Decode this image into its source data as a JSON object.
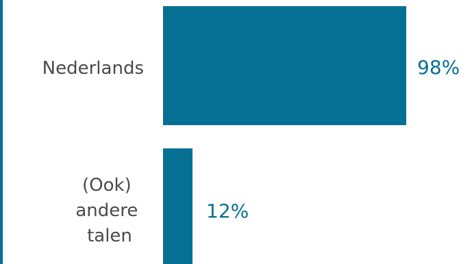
{
  "chart_data": {
    "type": "bar",
    "orientation": "horizontal",
    "categories": [
      "Nederlands",
      "(Ook) andere talen"
    ],
    "category_lines": [
      [
        "Nederlands"
      ],
      [
        "(Ook)",
        "andere",
        "talen"
      ]
    ],
    "values": [
      98,
      12
    ],
    "value_labels": [
      "98%",
      "12%"
    ],
    "xlim": [
      0,
      100
    ],
    "title": "",
    "xlabel": "",
    "ylabel": "",
    "grid": false,
    "legend": "none",
    "colors": {
      "bar": "#057094",
      "value_text": "#057094",
      "label_text": "#4a4a4a",
      "left_rule": "#057094"
    }
  }
}
